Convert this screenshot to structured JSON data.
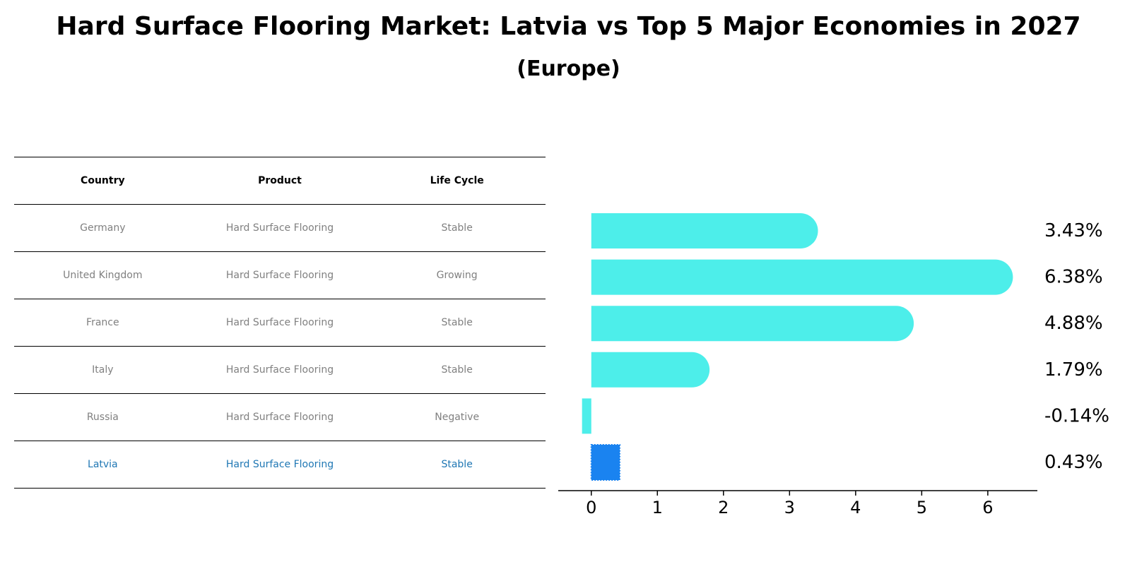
{
  "title": "Hard Surface Flooring Market: Latvia vs Top 5 Major Economies in 2027",
  "subtitle": "(Europe)",
  "table": {
    "headers": [
      "Country",
      "Product",
      "Life Cycle"
    ],
    "rows": [
      {
        "country": "Germany",
        "product": "Hard Surface Flooring",
        "life_cycle": "Stable"
      },
      {
        "country": "United Kingdom",
        "product": "Hard Surface Flooring",
        "life_cycle": "Growing"
      },
      {
        "country": "France",
        "product": "Hard Surface Flooring",
        "life_cycle": "Stable"
      },
      {
        "country": "Italy",
        "product": "Hard Surface Flooring",
        "life_cycle": "Stable"
      },
      {
        "country": "Russia",
        "product": "Hard Surface Flooring",
        "life_cycle": "Negative"
      },
      {
        "country": "Latvia",
        "product": "Hard Surface Flooring",
        "life_cycle": "Stable"
      }
    ]
  },
  "colors": {
    "bar": "#4deeea",
    "highlight_bar": "#1a83f0",
    "highlight_text": "#1f77b4",
    "muted_text": "#808080"
  },
  "chart_data": {
    "type": "bar",
    "orientation": "horizontal",
    "title": "Hard Surface Flooring Market: Latvia vs Top 5 Major Economies in 2027",
    "subtitle": "(Europe)",
    "categories": [
      "Germany",
      "United Kingdom",
      "France",
      "Italy",
      "Russia",
      "Latvia"
    ],
    "values": [
      3.43,
      6.38,
      4.88,
      1.79,
      -0.14,
      0.43
    ],
    "value_labels": [
      "3.43%",
      "6.38%",
      "4.88%",
      "1.79%",
      "-0.14%",
      "0.43%"
    ],
    "highlight": "Latvia",
    "xlim": [
      -0.5,
      6.75
    ],
    "xticks": [
      0,
      1,
      2,
      3,
      4,
      5,
      6
    ],
    "xlabel": "",
    "ylabel": "",
    "grid": false
  }
}
